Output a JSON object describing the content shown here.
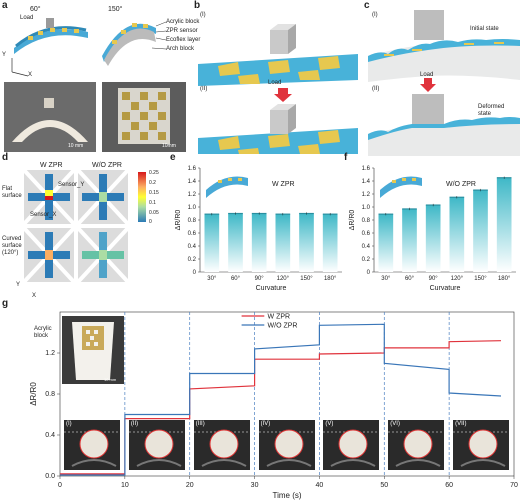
{
  "panels": {
    "a": {
      "letter": "a",
      "angles": [
        "60°",
        "150°"
      ],
      "load_label": "Load",
      "layer_labels": [
        "Acrylic block",
        "ZPR sensor",
        "Ecoflex layer",
        "Arch block"
      ],
      "axis": {
        "y": "Y",
        "x": "X"
      },
      "scale_bars": [
        "10 mm",
        "10mm"
      ]
    },
    "b": {
      "letter": "b",
      "states": [
        "(I)",
        "(II)"
      ],
      "load_label": "Load"
    },
    "c": {
      "letter": "c",
      "states": [
        "(I)",
        "(II)"
      ],
      "initial_label": "Initial state",
      "load_label": "Load",
      "deformed_label": "Deformed state"
    },
    "d": {
      "letter": "d",
      "columns": [
        "W ZPR",
        "W/O ZPR"
      ],
      "rows": [
        "Flat surface",
        "Curved surface (120°)"
      ],
      "sensor_labels": [
        "Sensor_Y",
        "Sensor_X"
      ],
      "axis": {
        "y": "Y",
        "x": "X"
      },
      "colorbar_ticks": [
        "0.25",
        "0.2",
        "0.15",
        "0.1",
        "0.05",
        "0"
      ],
      "colors": {
        "high": "#d7191c",
        "mid": "#ffff33",
        "low": "#2c7bb6"
      }
    },
    "g": {
      "letter": "g",
      "acrylic_label": "Acrylic block",
      "scale_bar": "10 mm",
      "stages": [
        "(I)",
        "(II)",
        "(III)",
        "(IV)",
        "(V)",
        "(VI)",
        "(VII)"
      ]
    }
  },
  "chart_data": [
    {
      "id": "e",
      "letter": "e",
      "type": "bar",
      "title": "W ZPR",
      "xlabel": "Curvature",
      "ylabel": "ΔR/R0",
      "categories": [
        "30°",
        "60°",
        "90°",
        "120°",
        "150°",
        "180°"
      ],
      "values": [
        0.89,
        0.9,
        0.9,
        0.89,
        0.9,
        0.89
      ],
      "ylim": [
        0,
        1.6
      ],
      "yticks": [
        "0",
        "0.2",
        "0.4",
        "0.6",
        "0.8",
        "1.0",
        "1.2",
        "1.4",
        "1.6"
      ],
      "color": "#3fb8c7"
    },
    {
      "id": "f",
      "letter": "f",
      "type": "bar",
      "title": "W/O ZPR",
      "xlabel": "Curvature",
      "ylabel": "ΔR/R0",
      "categories": [
        "30°",
        "60°",
        "90°",
        "120°",
        "150°",
        "180°"
      ],
      "values": [
        0.89,
        0.97,
        1.03,
        1.15,
        1.26,
        1.45
      ],
      "ylim": [
        0,
        1.6
      ],
      "yticks": [
        "0",
        "0.2",
        "0.4",
        "0.6",
        "0.8",
        "1.0",
        "1.2",
        "1.4",
        "1.6"
      ],
      "color": "#3fb8c7"
    },
    {
      "id": "g",
      "letter": "g",
      "type": "line",
      "xlabel": "Time (s)",
      "ylabel": "ΔR/R0",
      "xlim": [
        0,
        70
      ],
      "ylim": [
        0,
        1.6
      ],
      "xticks": [
        "0",
        "10",
        "20",
        "30",
        "40",
        "50",
        "60",
        "70"
      ],
      "yticks": [
        "0.0",
        "0.4",
        "0.8",
        "1.2"
      ],
      "stage_lines": [
        10,
        20,
        30,
        40,
        50,
        60
      ],
      "series": [
        {
          "name": "W ZPR",
          "color": "#e0333c",
          "points": [
            [
              0,
              0.02
            ],
            [
              10,
              0.02
            ],
            [
              10,
              0.56
            ],
            [
              20,
              0.56
            ],
            [
              20,
              0.85
            ],
            [
              30,
              0.88
            ],
            [
              30,
              1.14
            ],
            [
              40,
              1.14
            ],
            [
              40,
              1.19
            ],
            [
              50,
              1.2
            ],
            [
              50,
              1.25
            ],
            [
              60,
              1.25
            ],
            [
              60,
              1.31
            ],
            [
              68,
              1.32
            ]
          ]
        },
        {
          "name": "W/O ZPR",
          "color": "#3a76b8",
          "points": [
            [
              0,
              0.01
            ],
            [
              10,
              0.01
            ],
            [
              10,
              0.6
            ],
            [
              20,
              0.6
            ],
            [
              20,
              1.0
            ],
            [
              30,
              1.0
            ],
            [
              30,
              1.24
            ],
            [
              40,
              1.28
            ],
            [
              40,
              1.47
            ],
            [
              50,
              1.48
            ],
            [
              50,
              1.1
            ],
            [
              60,
              1.04
            ],
            [
              60,
              0.81
            ],
            [
              68,
              0.78
            ]
          ]
        }
      ]
    }
  ]
}
